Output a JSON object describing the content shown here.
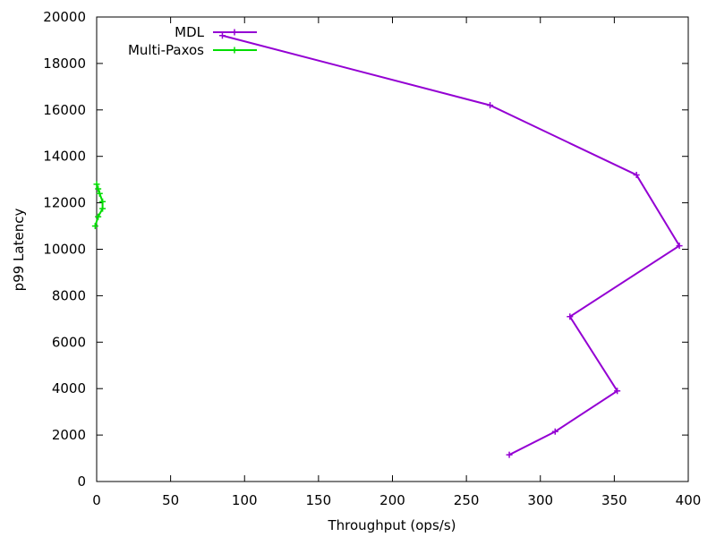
{
  "chart_data": {
    "type": "line",
    "title": "",
    "xlabel": "Throughput (ops/s)",
    "ylabel": "p99 Latency",
    "xlim": [
      0,
      400
    ],
    "ylim": [
      0,
      20000
    ],
    "xticks": [
      0,
      50,
      100,
      150,
      200,
      250,
      300,
      350,
      400
    ],
    "yticks": [
      0,
      2000,
      4000,
      6000,
      8000,
      10000,
      12000,
      14000,
      16000,
      18000,
      20000
    ],
    "grid": false,
    "legend_position": "top-left",
    "series": [
      {
        "name": "MDL",
        "color": "#9400d3",
        "points": [
          [
            279,
            1150
          ],
          [
            310,
            2150
          ],
          [
            352,
            3900
          ],
          [
            320,
            7100
          ],
          [
            394,
            10150
          ],
          [
            365,
            13200
          ],
          [
            266,
            16200
          ],
          [
            85,
            19200
          ]
        ]
      },
      {
        "name": "Multi-Paxos",
        "color": "#00dd00",
        "points": [
          [
            -1,
            11000
          ],
          [
            1,
            11400
          ],
          [
            4,
            11750
          ],
          [
            4,
            12050
          ],
          [
            2,
            12400
          ],
          [
            1,
            12600
          ],
          [
            0,
            12800
          ]
        ]
      }
    ]
  }
}
